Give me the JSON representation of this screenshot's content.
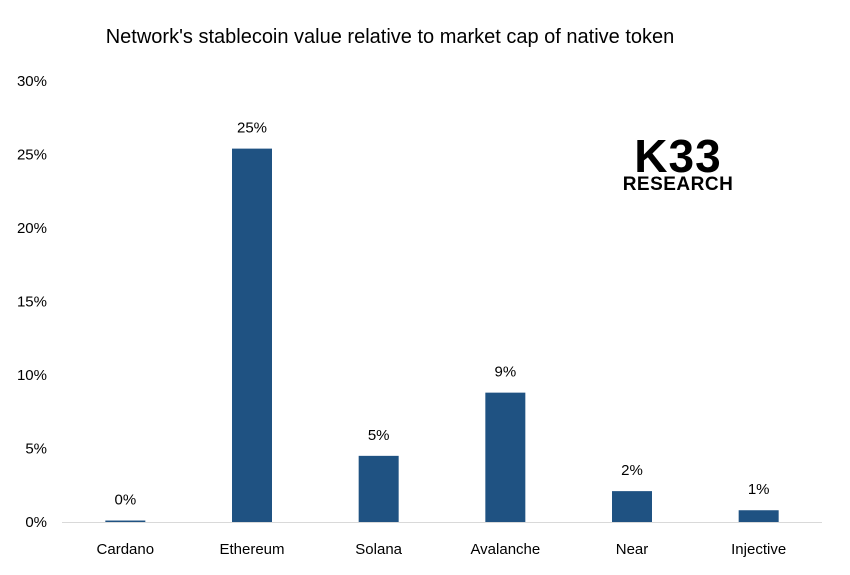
{
  "chart_data": {
    "type": "bar",
    "title": "Network's stablecoin value relative to market cap of native token",
    "categories": [
      "Cardano",
      "Ethereum",
      "Solana",
      "Avalanche",
      "Near",
      "Injective"
    ],
    "values": [
      0.1,
      25.4,
      4.5,
      8.8,
      2.1,
      0.8
    ],
    "data_labels": [
      "0%",
      "25%",
      "5%",
      "9%",
      "2%",
      "1%"
    ],
    "ylim": [
      0,
      30
    ],
    "yticks": [
      0,
      5,
      10,
      15,
      20,
      25,
      30
    ],
    "ytick_labels": [
      "0%",
      "5%",
      "10%",
      "15%",
      "20%",
      "25%",
      "30%"
    ],
    "xlabel": "",
    "ylabel": "",
    "grid": false,
    "bar_color": "#1f5282"
  },
  "logo": {
    "main_text": "K33",
    "sub_text": "RESEARCH"
  }
}
